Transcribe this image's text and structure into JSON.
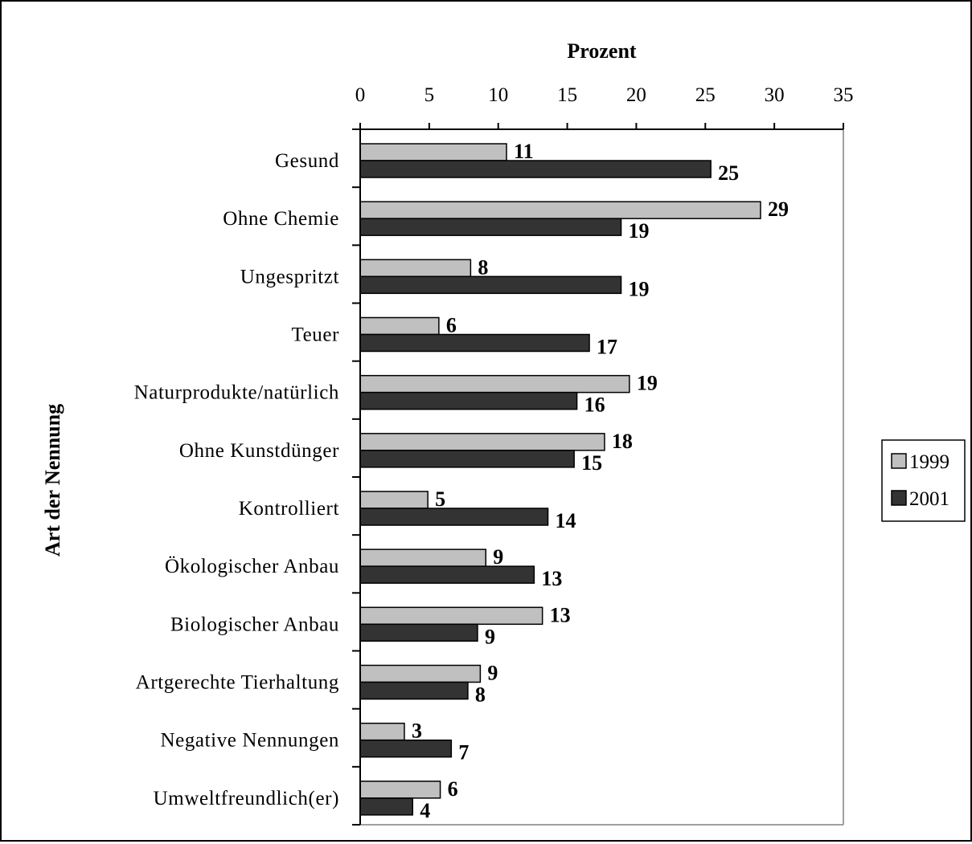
{
  "chart_data": {
    "type": "bar",
    "orientation": "horizontal",
    "xlabel": "Prozent",
    "ylabel": "Art der Nennung",
    "xlim": [
      0,
      35
    ],
    "xticks": [
      0,
      5,
      10,
      15,
      20,
      25,
      30,
      35
    ],
    "x_axis_position": "top",
    "grid": false,
    "legend_position": "right",
    "categories": [
      "Gesund",
      "Ohne Chemie",
      "Ungespritzt",
      "Teuer",
      "Naturprodukte/natürlich",
      "Ohne Kunstdünger",
      "Kontrolliert",
      "Ökologischer Anbau",
      "Biologischer Anbau",
      "Artgerechte Tierhaltung",
      "Negative Nennungen",
      "Umweltfreundlich(er)"
    ],
    "series": [
      {
        "name": "1999",
        "color": "#c0c0c0",
        "values": [
          10.6,
          29,
          8,
          5.7,
          19.5,
          17.7,
          4.9,
          9.1,
          13.2,
          8.7,
          3.2,
          5.8
        ],
        "labels": [
          "11",
          "29",
          "8",
          "6",
          "19",
          "18",
          "5",
          "9",
          "13",
          "9",
          "3",
          "6"
        ]
      },
      {
        "name": "2001",
        "color": "#333333",
        "values": [
          25.4,
          18.9,
          18.9,
          16.6,
          15.7,
          15.5,
          13.6,
          12.6,
          8.5,
          7.8,
          6.6,
          3.8
        ],
        "labels": [
          "25",
          "19",
          "19",
          "17",
          "16",
          "15",
          "14",
          "13",
          "9",
          "8",
          "7",
          "4"
        ]
      }
    ]
  }
}
